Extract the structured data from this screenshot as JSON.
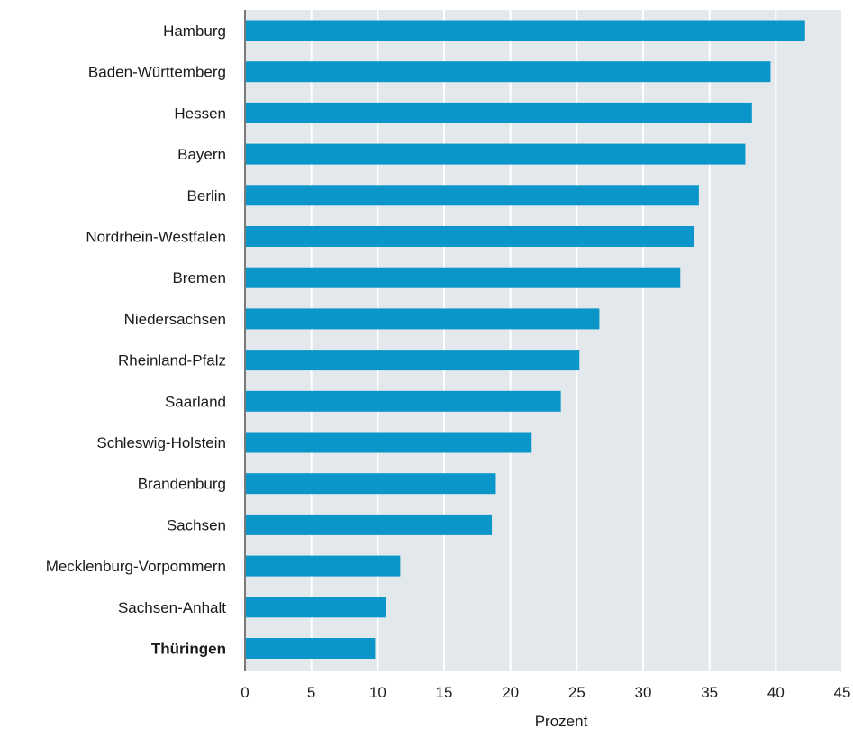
{
  "chart_data": {
    "type": "bar",
    "orientation": "horizontal",
    "categories": [
      "Hamburg",
      "Baden-Württemberg",
      "Hessen",
      "Bayern",
      "Berlin",
      "Nordrhein-Westfalen",
      "Bremen",
      "Niedersachsen",
      "Rheinland-Pfalz",
      "Saarland",
      "Schleswig-Holstein",
      "Brandenburg",
      "Sachsen",
      "Mecklenburg-Vorpommern",
      "Sachsen-Anhalt",
      "Thüringen"
    ],
    "highlighted_category": "Thüringen",
    "values": [
      42.2,
      39.6,
      38.2,
      37.7,
      34.2,
      33.8,
      32.8,
      26.7,
      25.2,
      23.8,
      21.6,
      18.9,
      18.6,
      11.7,
      10.6,
      9.8
    ],
    "xlabel": "Prozent",
    "xlim": [
      0,
      45
    ],
    "xticks": [
      0,
      5,
      10,
      15,
      20,
      25,
      30,
      35,
      40,
      45
    ],
    "grid": "vertical",
    "colors": {
      "bar": "#0a96c8",
      "plot_background": "#e3e8ec",
      "gridline": "#ffffff",
      "axis_line": "#7a7a7a"
    }
  }
}
